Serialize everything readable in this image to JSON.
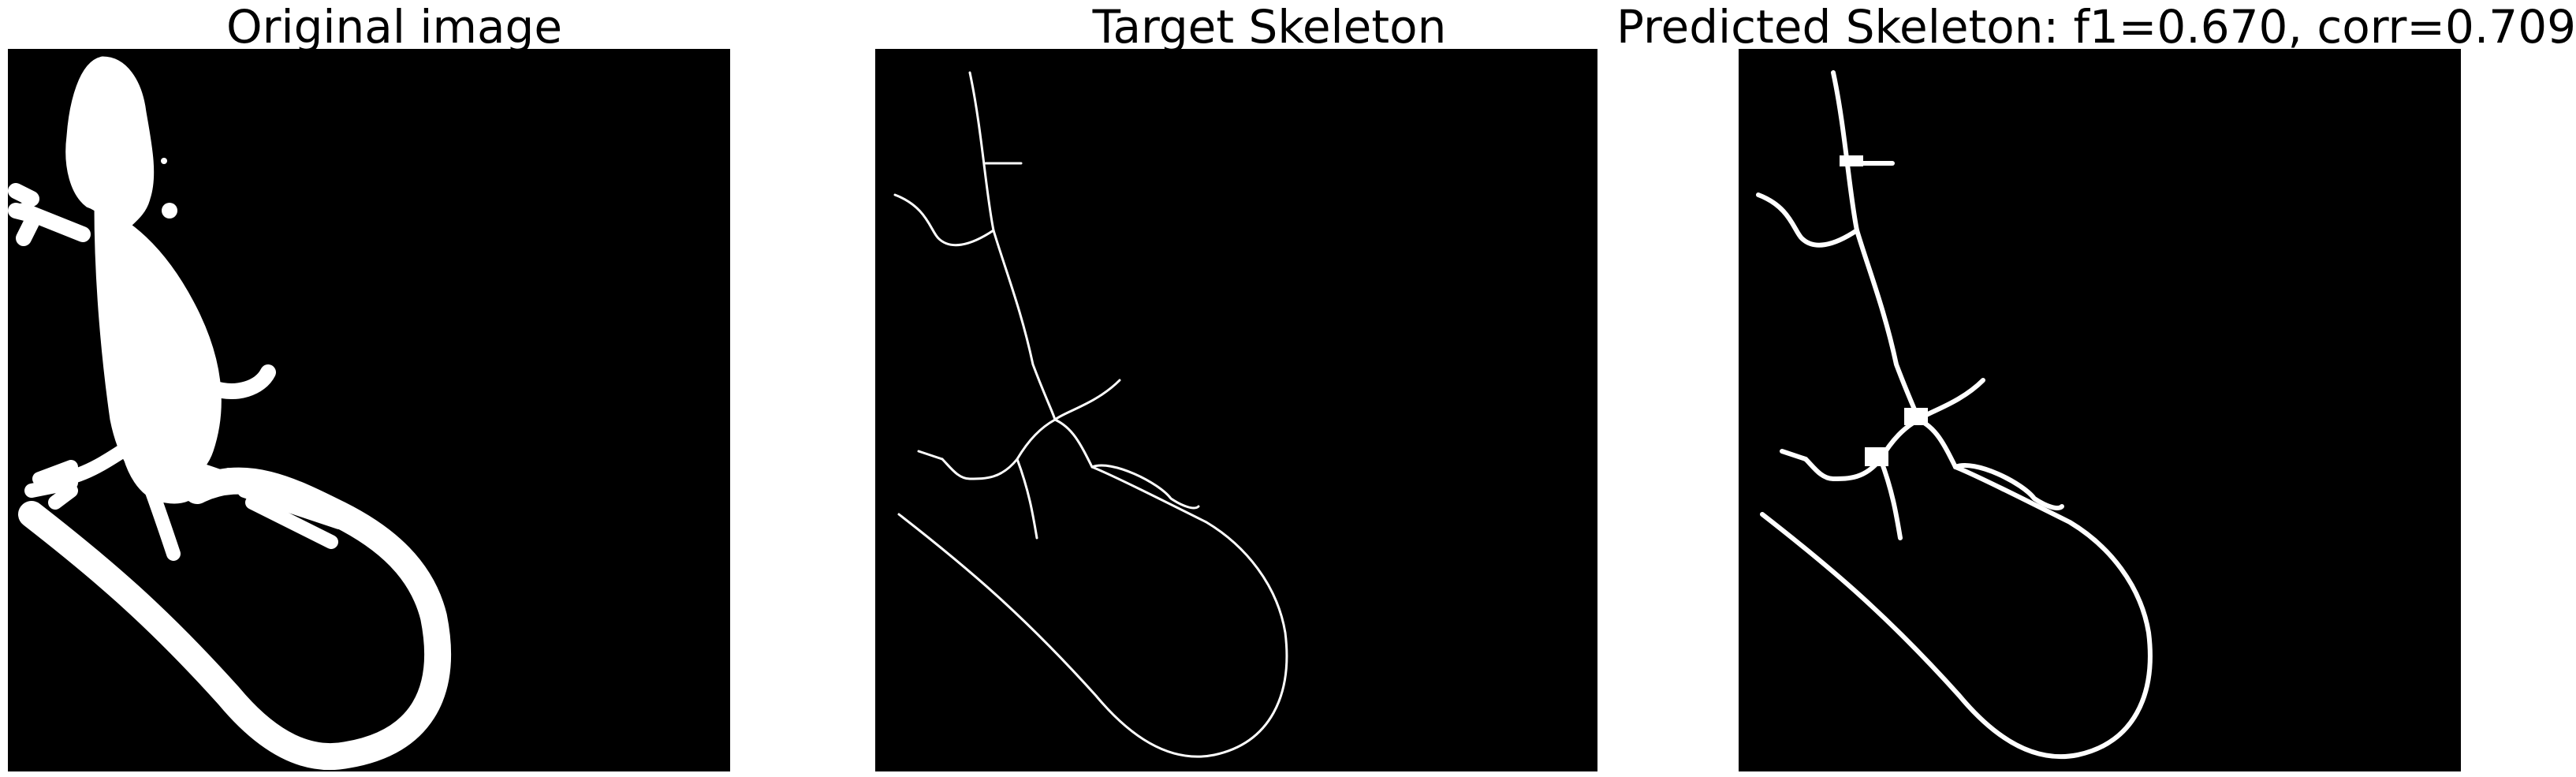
{
  "figure": {
    "panels": [
      {
        "id": "original",
        "title": "Original image"
      },
      {
        "id": "target",
        "title": "Target Skeleton"
      },
      {
        "id": "predicted",
        "title": "Predicted Skeleton: f1=0.670, corr=0.709"
      }
    ],
    "colors": {
      "background": "#000000",
      "foreground": "#ffffff",
      "page": "#ffffff"
    }
  }
}
